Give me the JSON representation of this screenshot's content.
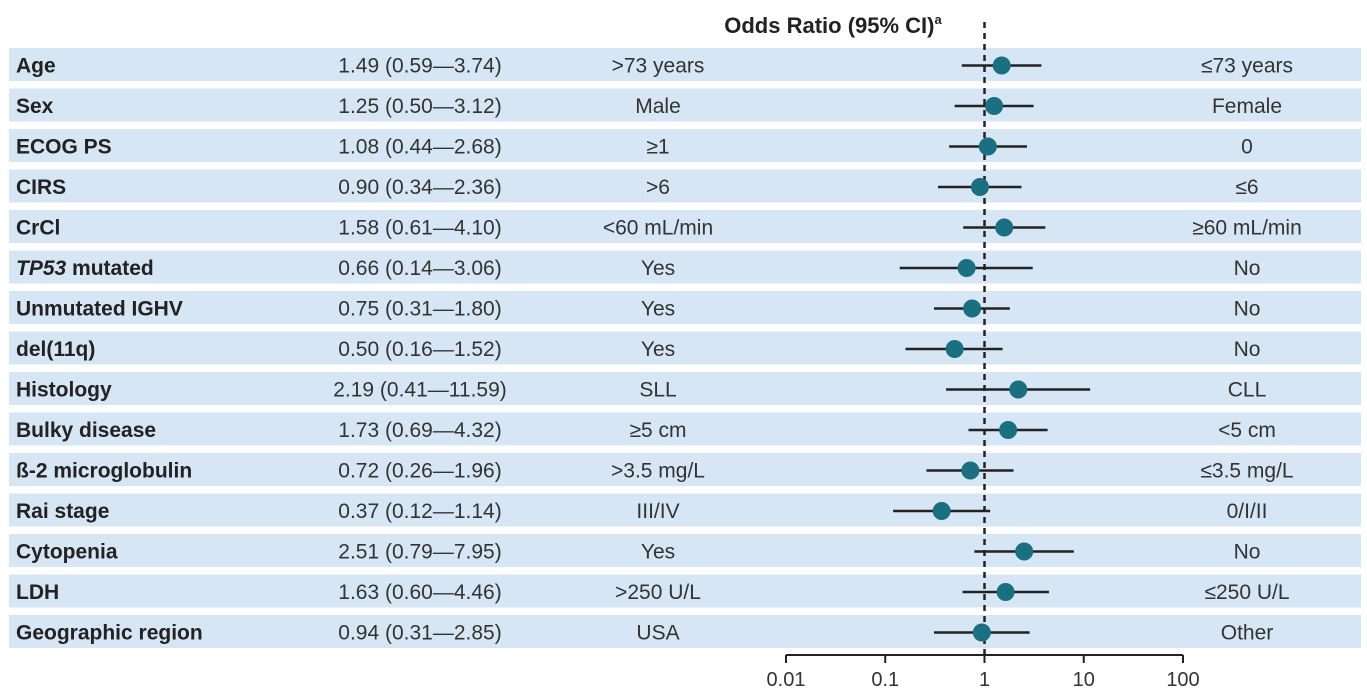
{
  "chart_data": {
    "type": "forest",
    "title": "Odds Ratio (95% CI)",
    "title_superscript": "a",
    "x_scale": "log",
    "xlim": [
      0.01,
      100
    ],
    "x_ticks": [
      "0.01",
      "0.1",
      "1",
      "10",
      "100"
    ],
    "x_tick_values": [
      0.01,
      0.1,
      1,
      10,
      100
    ],
    "reference_line": 1,
    "marker_color": "#1a6f80",
    "row_band_color": "#d6e6f4",
    "rows": [
      {
        "variable": "Age",
        "italic_prefix": "",
        "or_text": "1.49 (0.59—3.74)",
        "or": 1.49,
        "lo": 0.59,
        "hi": 3.74,
        "left_group": ">73 years",
        "right_group": "≤73 years"
      },
      {
        "variable": "Sex",
        "italic_prefix": "",
        "or_text": "1.25 (0.50—3.12)",
        "or": 1.25,
        "lo": 0.5,
        "hi": 3.12,
        "left_group": "Male",
        "right_group": "Female"
      },
      {
        "variable": "ECOG PS",
        "italic_prefix": "",
        "or_text": "1.08 (0.44—2.68)",
        "or": 1.08,
        "lo": 0.44,
        "hi": 2.68,
        "left_group": "≥1",
        "right_group": "0"
      },
      {
        "variable": "CIRS",
        "italic_prefix": "",
        "or_text": "0.90 (0.34—2.36)",
        "or": 0.9,
        "lo": 0.34,
        "hi": 2.36,
        "left_group": ">6",
        "right_group": "≤6"
      },
      {
        "variable": "CrCl",
        "italic_prefix": "",
        "or_text": "1.58 (0.61—4.10)",
        "or": 1.58,
        "lo": 0.61,
        "hi": 4.1,
        "left_group": "<60 mL/min",
        "right_group": "≥60 mL/min"
      },
      {
        "variable": " mutated",
        "italic_prefix": "TP53",
        "or_text": "0.66 (0.14—3.06)",
        "or": 0.66,
        "lo": 0.14,
        "hi": 3.06,
        "left_group": "Yes",
        "right_group": "No"
      },
      {
        "variable": "Unmutated IGHV",
        "italic_prefix": "",
        "or_text": "0.75 (0.31—1.80)",
        "or": 0.75,
        "lo": 0.31,
        "hi": 1.8,
        "left_group": "Yes",
        "right_group": "No"
      },
      {
        "variable": "del(11q)",
        "italic_prefix": "",
        "or_text": "0.50 (0.16—1.52)",
        "or": 0.5,
        "lo": 0.16,
        "hi": 1.52,
        "left_group": "Yes",
        "right_group": "No"
      },
      {
        "variable": "Histology",
        "italic_prefix": "",
        "or_text": "2.19 (0.41—11.59)",
        "or": 2.19,
        "lo": 0.41,
        "hi": 11.59,
        "left_group": "SLL",
        "right_group": "CLL"
      },
      {
        "variable": "Bulky disease",
        "italic_prefix": "",
        "or_text": "1.73 (0.69—4.32)",
        "or": 1.73,
        "lo": 0.69,
        "hi": 4.32,
        "left_group": "≥5 cm",
        "right_group": "<5 cm"
      },
      {
        "variable": "ß-2 microglobulin",
        "italic_prefix": "",
        "or_text": "0.72 (0.26—1.96)",
        "or": 0.72,
        "lo": 0.26,
        "hi": 1.96,
        "left_group": ">3.5 mg/L",
        "right_group": "≤3.5 mg/L"
      },
      {
        "variable": "Rai stage",
        "italic_prefix": "",
        "or_text": "0.37 (0.12—1.14)",
        "or": 0.37,
        "lo": 0.12,
        "hi": 1.14,
        "left_group": "III/IV",
        "right_group": "0/I/II"
      },
      {
        "variable": "Cytopenia",
        "italic_prefix": "",
        "or_text": "2.51 (0.79—7.95)",
        "or": 2.51,
        "lo": 0.79,
        "hi": 7.95,
        "left_group": "Yes",
        "right_group": "No"
      },
      {
        "variable": "LDH",
        "italic_prefix": "",
        "or_text": "1.63 (0.60—4.46)",
        "or": 1.63,
        "lo": 0.6,
        "hi": 4.46,
        "left_group": ">250 U/L",
        "right_group": "≤250 U/L"
      },
      {
        "variable": "Geographic region",
        "italic_prefix": "",
        "or_text": "0.94 (0.31—2.85)",
        "or": 0.94,
        "lo": 0.31,
        "hi": 2.85,
        "left_group": "USA",
        "right_group": "Other"
      }
    ]
  }
}
